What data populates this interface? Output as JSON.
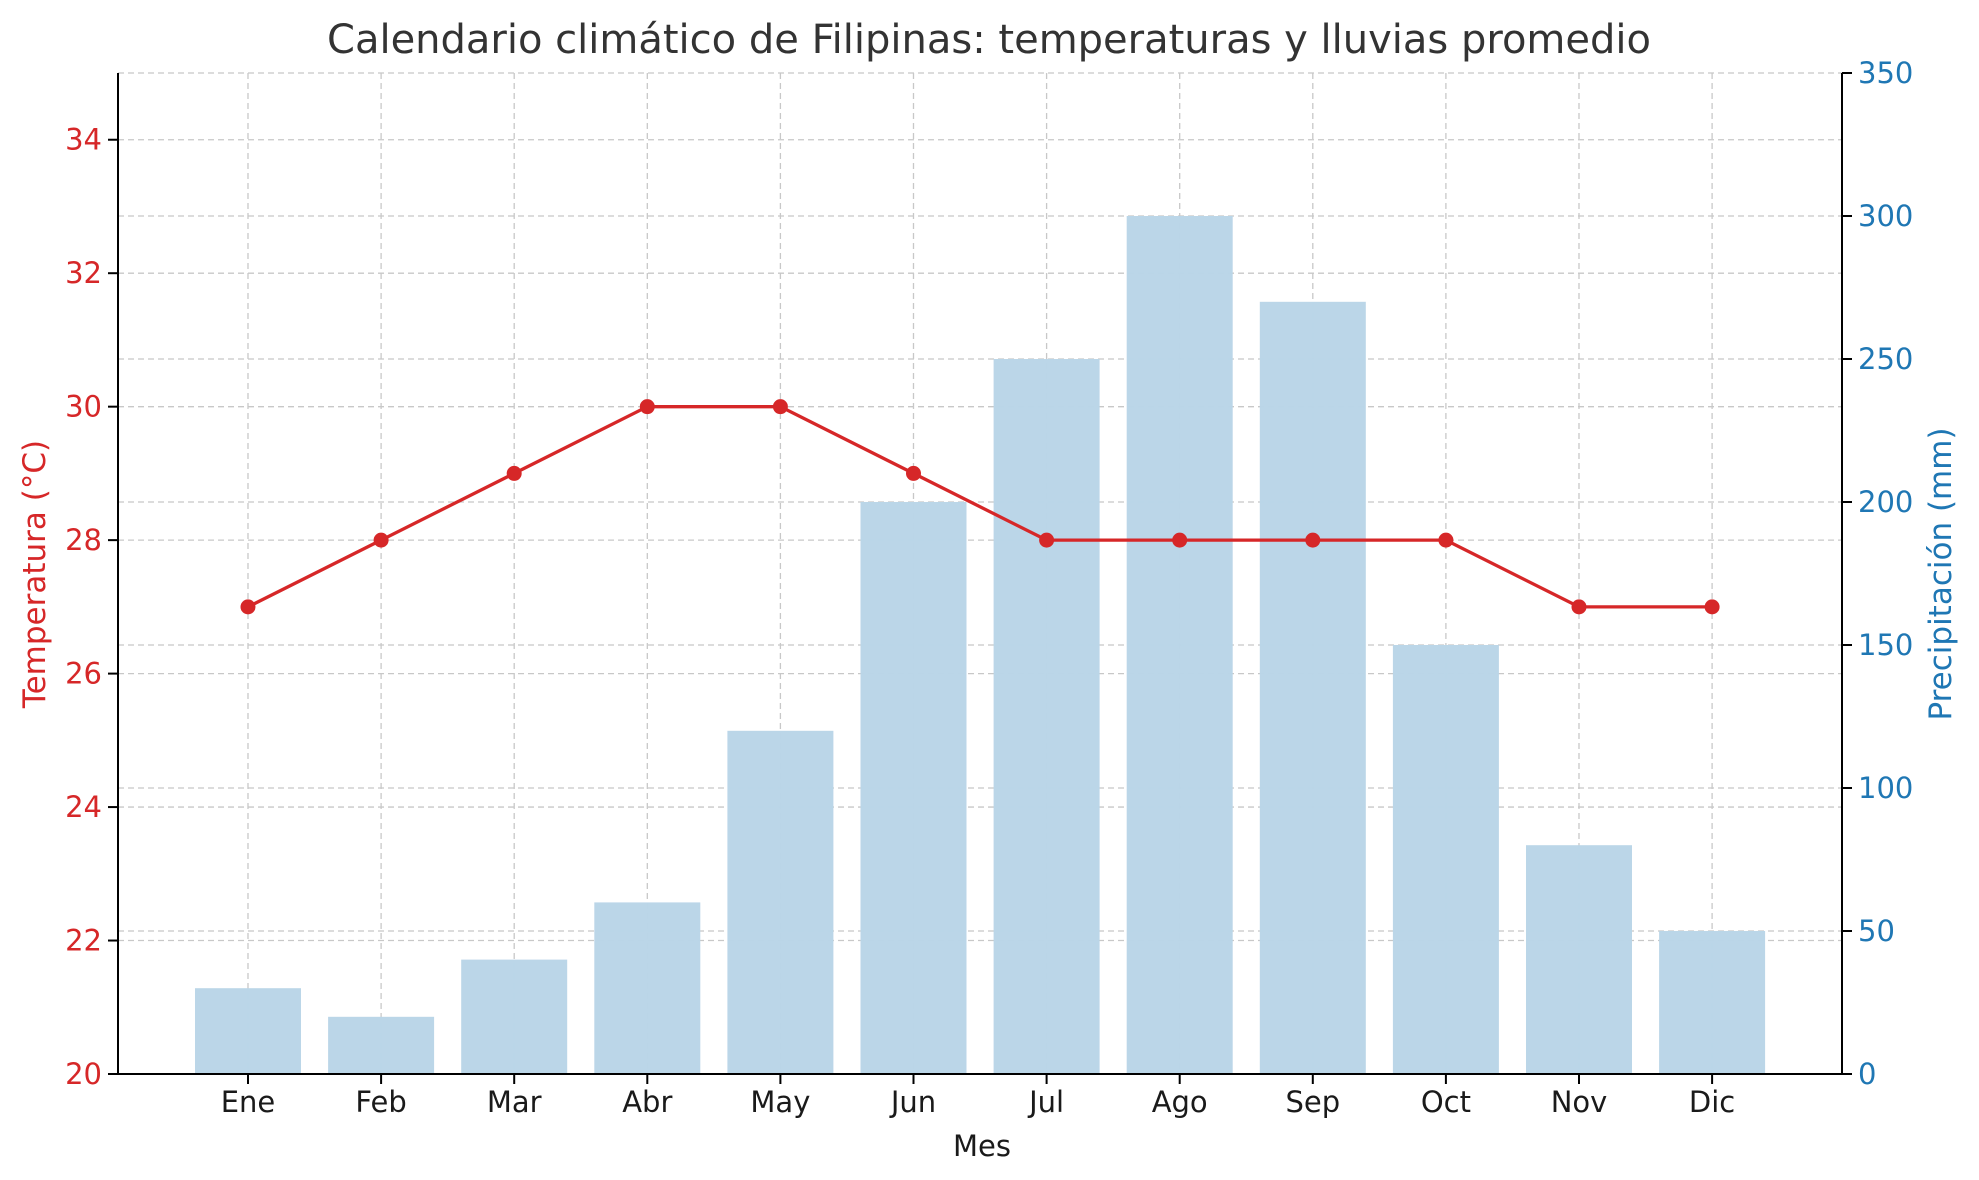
{
  "chart_data": {
    "type": "bar+line",
    "title": "Calendario climático de Filipinas: temperaturas y lluvias promedio",
    "xlabel": "Mes",
    "ylabel_left": "Temperatura (°C)",
    "ylabel_right": "Precipitación (mm)",
    "categories": [
      "Ene",
      "Feb",
      "Mar",
      "Abr",
      "May",
      "Jun",
      "Jul",
      "Ago",
      "Sep",
      "Oct",
      "Nov",
      "Dic"
    ],
    "series": [
      {
        "type": "line",
        "axis": "left",
        "values": [
          27,
          28,
          29,
          30,
          30,
          29,
          28,
          28,
          28,
          28,
          27,
          27
        ],
        "color": "#d62728"
      },
      {
        "type": "bar",
        "axis": "right",
        "values": [
          30,
          20,
          40,
          60,
          120,
          200,
          250,
          300,
          270,
          150,
          80,
          50
        ],
        "color": "#bad5e8"
      }
    ],
    "ylim_left": [
      20,
      35
    ],
    "ylim_right": [
      0,
      350
    ],
    "yticks_left": [
      "20",
      "22",
      "24",
      "26",
      "28",
      "30",
      "32",
      "34"
    ],
    "yticks_right": [
      "0",
      "50",
      "100",
      "150",
      "200",
      "250",
      "300",
      "350"
    ],
    "grid": true,
    "colors": {
      "temperature": "#d62728",
      "precipitation": "#1f77b4",
      "bars": "#bad5e8"
    }
  }
}
